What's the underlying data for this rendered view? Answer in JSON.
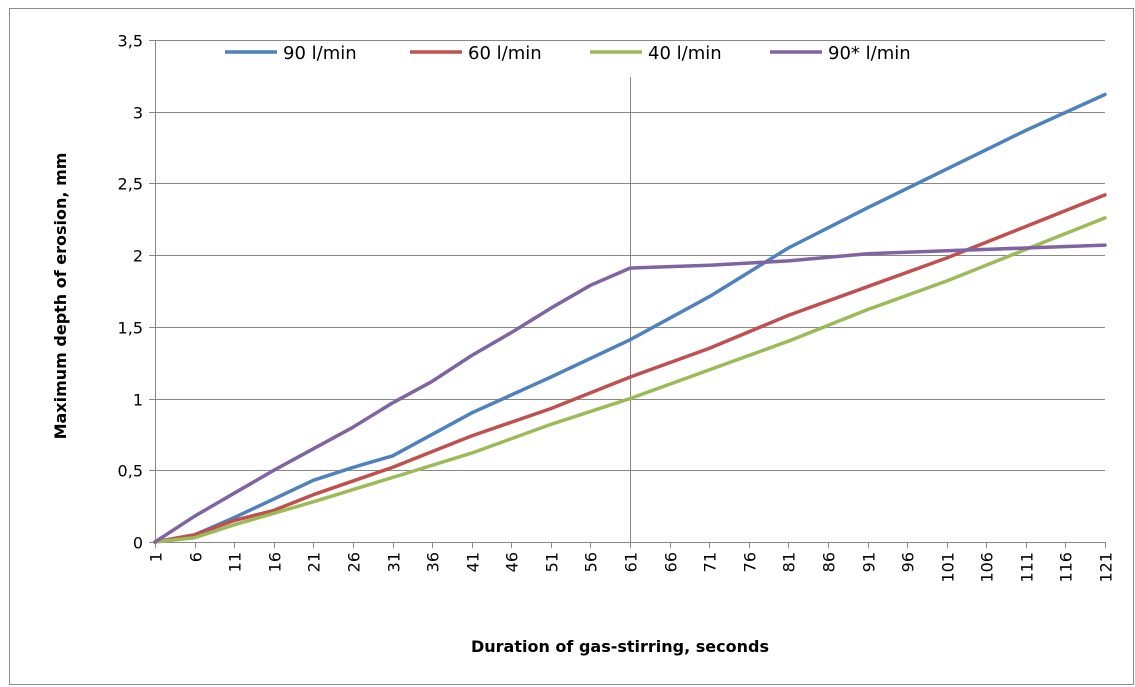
{
  "chart_data": {
    "type": "line",
    "title": "",
    "xlabel": "Duration of gas-stirring, seconds",
    "ylabel": "Maximum depth of erosion, mm",
    "x_range": [
      1,
      121
    ],
    "x_ticks": [
      "1",
      "6",
      "11",
      "16",
      "21",
      "26",
      "31",
      "36",
      "41",
      "46",
      "51",
      "56",
      "61",
      "66",
      "71",
      "76",
      "81",
      "86",
      "91",
      "96",
      "101",
      "106",
      "111",
      "116",
      "121"
    ],
    "ylim": [
      0,
      3.5
    ],
    "y_ticks": [
      "0",
      "0,5",
      "1",
      "1,5",
      "2",
      "2,5",
      "3",
      "3,5"
    ],
    "grid": "horizontal",
    "marker_line_x": 61,
    "legend_position": "top",
    "series": [
      {
        "name": "90 l/min",
        "color": "#4F81BD",
        "points": [
          [
            1,
            0
          ],
          [
            6,
            0.05
          ],
          [
            11,
            0.17
          ],
          [
            16,
            0.3
          ],
          [
            21,
            0.43
          ],
          [
            26,
            0.52
          ],
          [
            31,
            0.6
          ],
          [
            41,
            0.9
          ],
          [
            51,
            1.15
          ],
          [
            61,
            1.41
          ],
          [
            71,
            1.71
          ],
          [
            81,
            2.05
          ],
          [
            91,
            2.33
          ],
          [
            101,
            2.6
          ],
          [
            111,
            2.87
          ],
          [
            121,
            3.12
          ]
        ]
      },
      {
        "name": "60 l/min",
        "color": "#C0504D",
        "points": [
          [
            1,
            0
          ],
          [
            6,
            0.05
          ],
          [
            11,
            0.15
          ],
          [
            16,
            0.22
          ],
          [
            21,
            0.33
          ],
          [
            31,
            0.52
          ],
          [
            41,
            0.74
          ],
          [
            51,
            0.93
          ],
          [
            61,
            1.15
          ],
          [
            71,
            1.35
          ],
          [
            81,
            1.58
          ],
          [
            91,
            1.78
          ],
          [
            101,
            1.98
          ],
          [
            111,
            2.2
          ],
          [
            121,
            2.42
          ]
        ]
      },
      {
        "name": "40 l/min",
        "color": "#9BBB59",
        "points": [
          [
            1,
            0
          ],
          [
            6,
            0.03
          ],
          [
            11,
            0.12
          ],
          [
            16,
            0.2
          ],
          [
            21,
            0.28
          ],
          [
            31,
            0.45
          ],
          [
            41,
            0.62
          ],
          [
            51,
            0.82
          ],
          [
            61,
            1.0
          ],
          [
            71,
            1.2
          ],
          [
            81,
            1.4
          ],
          [
            91,
            1.62
          ],
          [
            101,
            1.82
          ],
          [
            111,
            2.04
          ],
          [
            121,
            2.26
          ]
        ]
      },
      {
        "name": "90* l/min",
        "color": "#8064A2",
        "points": [
          [
            1,
            0
          ],
          [
            6,
            0.18
          ],
          [
            11,
            0.34
          ],
          [
            16,
            0.5
          ],
          [
            21,
            0.65
          ],
          [
            26,
            0.8
          ],
          [
            31,
            0.97
          ],
          [
            36,
            1.12
          ],
          [
            41,
            1.3
          ],
          [
            46,
            1.46
          ],
          [
            51,
            1.63
          ],
          [
            56,
            1.79
          ],
          [
            61,
            1.91
          ],
          [
            66,
            1.92
          ],
          [
            71,
            1.93
          ],
          [
            81,
            1.96
          ],
          [
            91,
            2.01
          ],
          [
            101,
            2.03
          ],
          [
            111,
            2.05
          ],
          [
            121,
            2.07
          ]
        ]
      }
    ]
  }
}
